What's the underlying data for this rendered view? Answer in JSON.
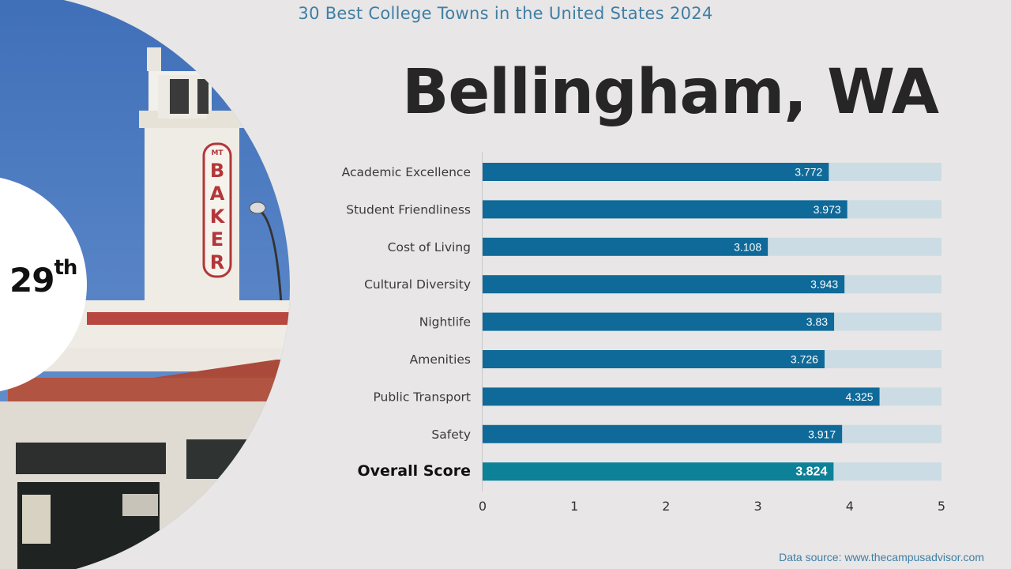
{
  "header": {
    "subtitle": "30 Best College Towns in the United States 2024"
  },
  "city": {
    "name": "Bellingham, WA",
    "rank_number": "29",
    "rank_suffix": "th"
  },
  "photo": {
    "sign_text": "BAKER",
    "sign_prefix": "MT"
  },
  "footer": {
    "source": "Data source: www.thecampusadvisor.com"
  },
  "colors": {
    "bar": "#0f6a99",
    "overall_bar": "#0d8198",
    "track": "#ccdce4",
    "accent_text": "#3f7fa5"
  },
  "chart_data": {
    "type": "bar",
    "orientation": "horizontal",
    "categories": [
      "Academic Excellence",
      "Student Friendliness",
      "Cost of Living",
      "Cultural Diversity",
      "Nightlife",
      "Amenities",
      "Public Transport",
      "Safety",
      "Overall Score"
    ],
    "values": [
      3.772,
      3.973,
      3.108,
      3.943,
      3.83,
      3.726,
      4.325,
      3.917,
      3.824
    ],
    "value_labels": [
      "3.772",
      "3.973",
      "3.108",
      "3.943",
      "3.83",
      "3.726",
      "4.325",
      "3.917",
      "3.824"
    ],
    "highlight_category": "Overall Score",
    "xlim": [
      0,
      5
    ],
    "xticks": [
      "0",
      "1",
      "2",
      "3",
      "4",
      "5"
    ],
    "grid": false
  }
}
